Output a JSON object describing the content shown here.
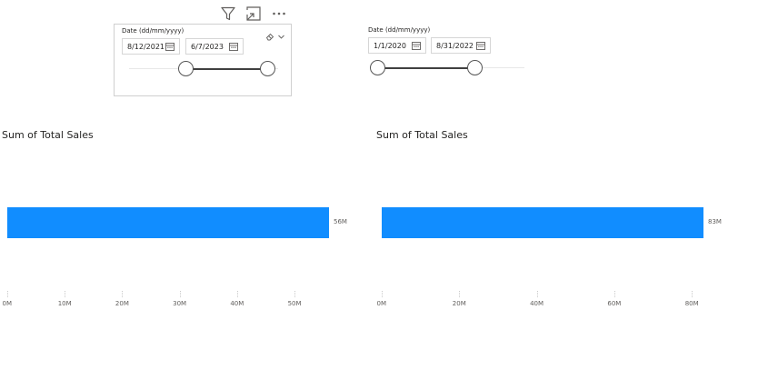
{
  "toolbar": {
    "icons": [
      "filter-icon",
      "focus-mode-icon",
      "more-options-icon"
    ]
  },
  "slicers": [
    {
      "title": "Date (dd/mm/yyyy)",
      "start_value": "8/12/2021",
      "end_value": "6/7/2023",
      "range": [
        0.38,
        0.93
      ]
    },
    {
      "title": "Date (dd/mm/yyyy)",
      "start_value": "1/1/2020",
      "end_value": "8/31/2022",
      "range": [
        0.05,
        0.68
      ]
    }
  ],
  "chart_data": [
    {
      "type": "bar",
      "title": "Sum of Total Sales",
      "orientation": "horizontal",
      "values": [
        56
      ],
      "value_labels": [
        "56M"
      ],
      "xlim": [
        0,
        56
      ],
      "ticks": [
        0,
        10,
        20,
        30,
        40,
        50
      ],
      "tick_labels": [
        "0M",
        "10M",
        "20M",
        "30M",
        "40M",
        "50M"
      ],
      "color": "#118DFF"
    },
    {
      "type": "bar",
      "title": "Sum of Total Sales",
      "orientation": "horizontal",
      "values": [
        83
      ],
      "value_labels": [
        "83M"
      ],
      "xlim": [
        0,
        83
      ],
      "ticks": [
        0,
        20,
        40,
        60,
        80
      ],
      "tick_labels": [
        "0M",
        "20M",
        "40M",
        "60M",
        "80M"
      ],
      "color": "#118DFF"
    }
  ]
}
